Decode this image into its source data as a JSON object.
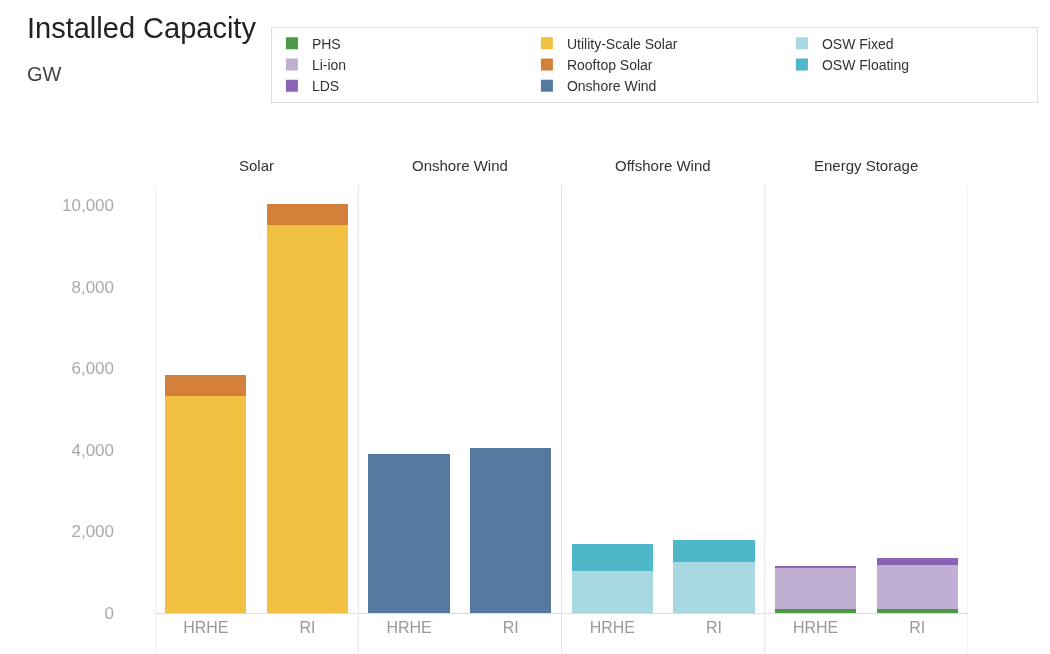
{
  "chart_data": {
    "type": "bar",
    "title": "Installed Capacity",
    "subtitle": "GW",
    "categories": [
      "HRHE",
      "RI",
      "HRHE",
      "RI",
      "HRHE",
      "RI",
      "HRHE",
      "RI"
    ],
    "annotations": [
      "Solar",
      "Onshore Wind",
      "Offshore Wind",
      "Energy Storage"
    ],
    "stacked": true,
    "series": [
      {
        "name": "PHS",
        "color": "#4a9a45",
        "values": [
          null,
          null,
          null,
          null,
          null,
          null,
          100,
          100
        ]
      },
      {
        "name": "Utility-Scale Solar",
        "color": "#f2c142",
        "values": [
          5330,
          9530,
          null,
          null,
          null,
          null,
          null,
          null
        ]
      },
      {
        "name": "OSW Fixed",
        "color": "#a8d8e2",
        "values": [
          null,
          null,
          null,
          null,
          1020,
          1250,
          null,
          null
        ]
      },
      {
        "name": "Li-ion",
        "color": "#c1aed3",
        "values": [
          null,
          null,
          null,
          null,
          null,
          null,
          1010,
          1080
        ]
      },
      {
        "name": "Rooftop Solar",
        "color": "#d4803a",
        "values": [
          500,
          500,
          null,
          null,
          null,
          null,
          null,
          null
        ]
      },
      {
        "name": "OSW Floating",
        "color": "#4fb8c8",
        "values": [
          null,
          null,
          null,
          null,
          680,
          550,
          null,
          null
        ]
      },
      {
        "name": "LDS",
        "color": "#8a63b5",
        "values": [
          null,
          null,
          null,
          null,
          null,
          null,
          30,
          170
        ]
      },
      {
        "name": "Onshore Wind",
        "color": "#55789f",
        "values": [
          null,
          null,
          3900,
          4050,
          null,
          null,
          null,
          null
        ]
      }
    ],
    "ylim": [
      0,
      10500
    ],
    "yticks": [
      0,
      {
        "value": 2000,
        "label": "2,000"
      },
      {
        "value": 4000,
        "label": "4,000"
      },
      {
        "value": 6000,
        "label": "6,000"
      },
      {
        "value": 8000,
        "label": "8,000"
      },
      {
        "value": 10000,
        "label": "10,000"
      }
    ],
    "grid": false,
    "legend": "top right"
  }
}
